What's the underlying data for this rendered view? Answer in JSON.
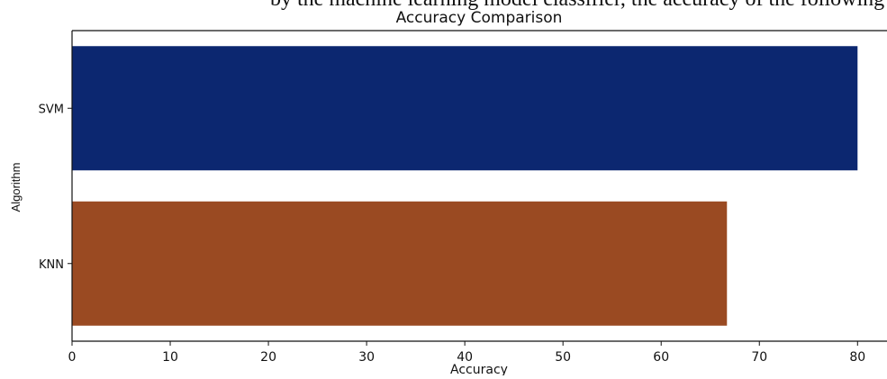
{
  "cropped_text": "by the machine learning model classifier, the accuracy of the following",
  "chart_data": {
    "type": "bar",
    "orientation": "horizontal",
    "title": "Accuracy Comparison",
    "xlabel": "Accuracy",
    "ylabel": "Algorithm",
    "categories": [
      "SVM",
      "KNN"
    ],
    "values": [
      80.0,
      66.7
    ],
    "xlim": [
      0,
      83
    ],
    "xticks": [
      0,
      10,
      20,
      30,
      40,
      50,
      60,
      70,
      80
    ],
    "bar_colors": [
      "#0c2770",
      "#9a4a22"
    ],
    "grid": false,
    "legend": "none"
  }
}
